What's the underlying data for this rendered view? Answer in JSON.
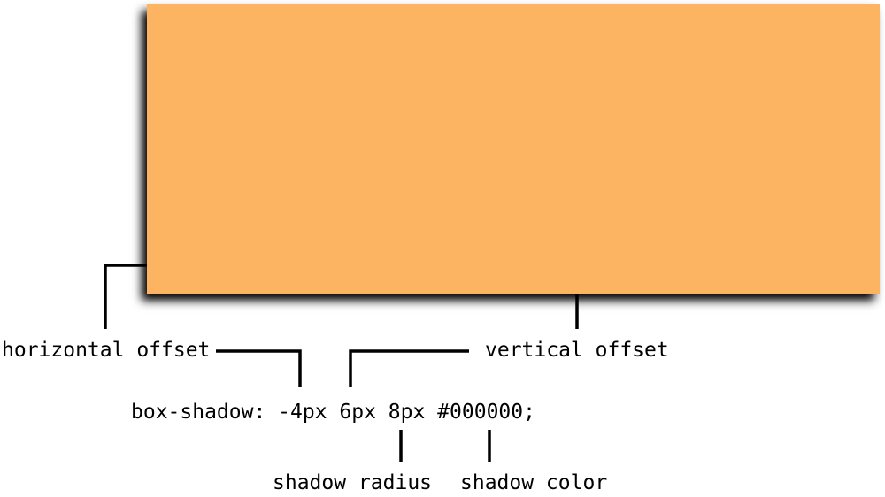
{
  "diagram": {
    "code_line": "box-shadow: -4px 6px 8px #000000;",
    "labels": {
      "horizontal_offset": "horizontal offset",
      "vertical_offset": "vertical offset",
      "shadow_radius": "shadow radius",
      "shadow_color": "shadow color"
    },
    "colors": {
      "box_fill": "#FDB462",
      "shadow": "#000000",
      "line": "#000000",
      "background": "#FFFFFF"
    }
  }
}
